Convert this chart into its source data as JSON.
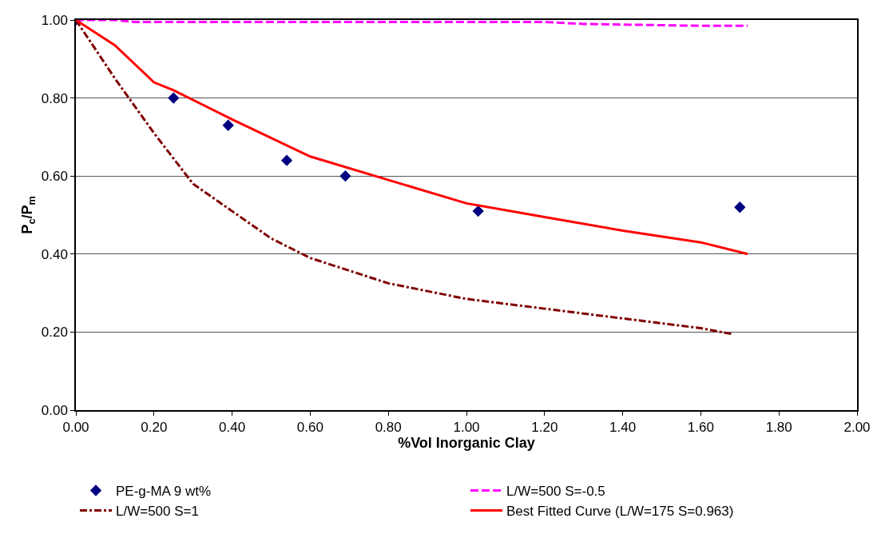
{
  "chart_data": {
    "type": "line",
    "xlabel": "%Vol Inorganic Clay",
    "ylabel": "P$_{c}$/P$_{m}$",
    "xlim": [
      0,
      2
    ],
    "xticks": [
      {
        "value": 0,
        "label": "0.00"
      },
      {
        "value": 0.2,
        "label": "0.20"
      },
      {
        "value": 0.4,
        "label": "0.40"
      },
      {
        "value": 0.6,
        "label": "0.60"
      },
      {
        "value": 0.8,
        "label": "0.80"
      },
      {
        "value": 1,
        "label": "1.00"
      },
      {
        "value": 1.2,
        "label": "1.20"
      },
      {
        "value": 1.4,
        "label": "1.40"
      },
      {
        "value": 1.6,
        "label": "1.60"
      },
      {
        "value": 1.8,
        "label": "1.80"
      },
      {
        "value": 2,
        "label": "2.00"
      }
    ],
    "ylim": [
      0,
      1
    ],
    "yticks": [
      {
        "value": 0,
        "label": "0.00"
      },
      {
        "value": 0.2,
        "label": "0.20"
      },
      {
        "value": 0.4,
        "label": "0.40"
      },
      {
        "value": 0.6,
        "label": "0.60"
      },
      {
        "value": 0.8,
        "label": "0.80"
      },
      {
        "value": 1,
        "label": "1.00"
      }
    ],
    "grid": "y",
    "legend": "bottom",
    "series": [
      {
        "name": "PE-g-MA 9 wt%",
        "type": "scatter",
        "marker": "diamond",
        "color": "#000080",
        "x": [
          0,
          0.25,
          0.39,
          0.54,
          0.69,
          1.03,
          1.7
        ],
        "values": [
          1.0,
          0.8,
          0.73,
          0.64,
          0.6,
          0.51,
          0.52
        ]
      },
      {
        "name": "L/W=500 S=-0.5",
        "line_style": "dashed",
        "color": "#ff00ff",
        "x": [
          0,
          0.1,
          0.15,
          0.6,
          1.2,
          1.3,
          1.6,
          1.72
        ],
        "values": [
          1.0,
          1.0,
          0.995,
          0.995,
          0.995,
          0.99,
          0.985,
          0.985
        ]
      },
      {
        "name": "L/W=500 S=1",
        "line_style": "dashdot",
        "color": "#800000",
        "x": [
          0,
          0.1,
          0.2,
          0.3,
          0.4,
          0.5,
          0.6,
          0.8,
          1.0,
          1.2,
          1.4,
          1.6,
          1.68
        ],
        "values": [
          1.0,
          0.85,
          0.71,
          0.58,
          0.51,
          0.44,
          0.39,
          0.325,
          0.285,
          0.26,
          0.235,
          0.21,
          0.195
        ]
      },
      {
        "name": "Best Fitted Curve (L/W=175 S=0.963)",
        "line_style": "solid",
        "color": "#ff0000",
        "x": [
          0,
          0.1,
          0.2,
          0.25,
          0.4,
          0.6,
          0.8,
          1.0,
          1.2,
          1.4,
          1.6,
          1.72
        ],
        "values": [
          1.0,
          0.935,
          0.84,
          0.82,
          0.745,
          0.65,
          0.59,
          0.53,
          0.495,
          0.46,
          0.43,
          0.4
        ]
      }
    ]
  }
}
